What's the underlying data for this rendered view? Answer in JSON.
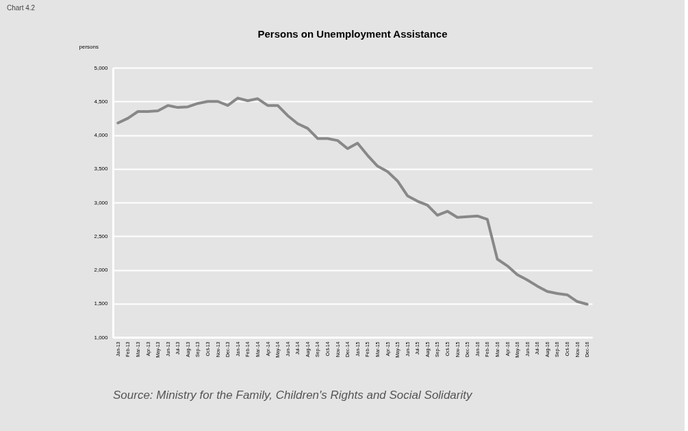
{
  "chart_data": {
    "type": "line",
    "title": "Persons on Unemployment Assistance",
    "ylabel": "persons",
    "categories": [
      "Jan-13",
      "Feb-13",
      "Mar-13",
      "Apr-13",
      "May-13",
      "Jun-13",
      "Jul-13",
      "Aug-13",
      "Sep-13",
      "Oct-13",
      "Nov-13",
      "Dec-13",
      "Jan-14",
      "Feb-14",
      "Mar-14",
      "Apr-14",
      "May-14",
      "Jun-14",
      "Jul-14",
      "Aug-14",
      "Sep-14",
      "Oct-14",
      "Nov-14",
      "Dec-14",
      "Jan-15",
      "Feb-15",
      "Mar-15",
      "Apr-15",
      "May-15",
      "Jun-15",
      "Jul-15",
      "Aug-15",
      "Sep-15",
      "Oct-15",
      "Nov-15",
      "Dec-15",
      "Jan-16",
      "Feb-16",
      "Mar-16",
      "Apr-16",
      "May-16",
      "Jun-16",
      "Jul-16",
      "Aug-16",
      "Sep-16",
      "Oct-16",
      "Nov-16",
      "Dec-16"
    ],
    "series": [
      {
        "color": "#888888",
        "values": [
          4180,
          4250,
          4350,
          4350,
          4360,
          4440,
          4410,
          4420,
          4470,
          4500,
          4500,
          4440,
          4550,
          4510,
          4540,
          4440,
          4440,
          4290,
          4170,
          4100,
          3950,
          3950,
          3920,
          3800,
          3880,
          3700,
          3540,
          3460,
          3320,
          3100,
          3020,
          2960,
          2810,
          2870,
          2780,
          2790,
          2800,
          2750,
          2160,
          2060,
          1930,
          1850,
          1760,
          1680,
          1650,
          1630,
          1530,
          1490
        ]
      }
    ],
    "ylim": [
      1000,
      5000
    ],
    "yticks": [
      {
        "value": 1000,
        "label": "1,000"
      },
      {
        "value": 1500,
        "label": "1,500"
      },
      {
        "value": 2000,
        "label": "2,000"
      },
      {
        "value": 2500,
        "label": "2,500"
      },
      {
        "value": 3000,
        "label": "3,000"
      },
      {
        "value": 3500,
        "label": "3,500"
      },
      {
        "value": 4000,
        "label": "4,000"
      },
      {
        "value": 4500,
        "label": "4,500"
      },
      {
        "value": 5000,
        "label": "5,000"
      }
    ],
    "grid": "y",
    "annotations": [
      "Chart 4.2",
      "Source: Ministry for the Family, Children's Rights and Social Solidarity"
    ]
  }
}
